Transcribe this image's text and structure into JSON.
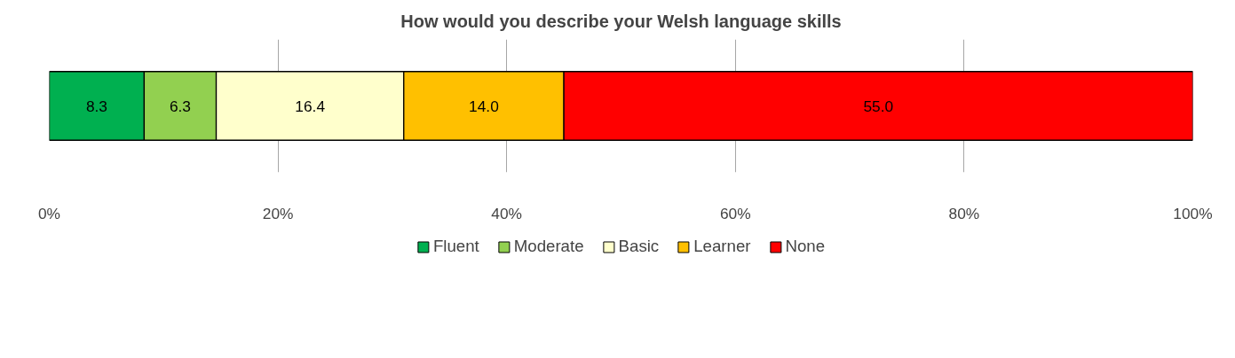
{
  "chart_data": {
    "type": "bar",
    "title": "How would you describe your Welsh language skills",
    "orientation": "horizontal",
    "stacked": true,
    "categories": [
      null
    ],
    "series": [
      {
        "name": "Fluent",
        "color": "#00b050",
        "values": [
          8.3
        ],
        "value_labels": [
          "8.3"
        ]
      },
      {
        "name": "Moderate",
        "color": "#92d050",
        "values": [
          6.3
        ],
        "value_labels": [
          "6.3"
        ]
      },
      {
        "name": "Basic",
        "color": "#ffffcc",
        "values": [
          16.4
        ],
        "value_labels": [
          "16.4"
        ]
      },
      {
        "name": "Learner",
        "color": "#ffc000",
        "values": [
          14.0
        ],
        "value_labels": [
          "14.0"
        ]
      },
      {
        "name": "None",
        "color": "#ff0000",
        "values": [
          55.0
        ],
        "value_labels": [
          "55.0"
        ]
      }
    ],
    "xlim": [
      0,
      100
    ],
    "xticks": [
      {
        "value": 0,
        "label": "0%"
      },
      {
        "value": 20,
        "label": "20%"
      },
      {
        "value": 40,
        "label": "40%"
      },
      {
        "value": 60,
        "label": "60%"
      },
      {
        "value": 80,
        "label": "80%"
      },
      {
        "value": 100,
        "label": "100%"
      }
    ],
    "grid": "x",
    "legend": "bottom"
  }
}
